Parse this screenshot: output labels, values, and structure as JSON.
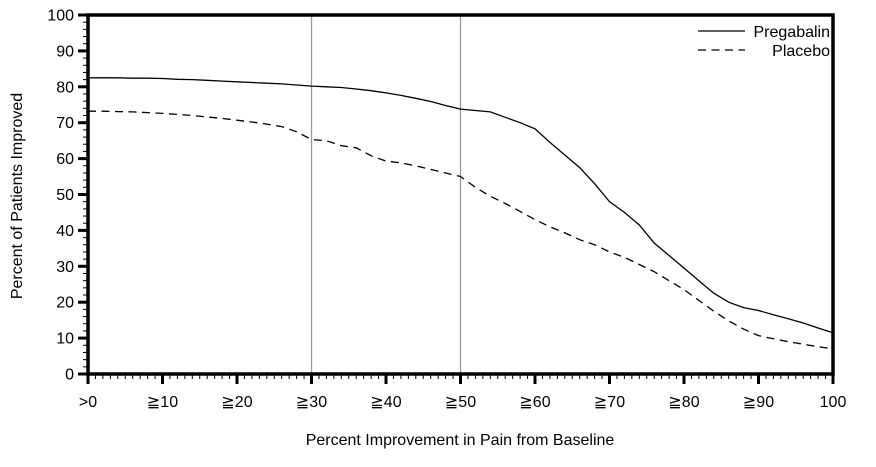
{
  "chart_data": {
    "type": "line",
    "title": "",
    "xlabel": "Percent Improvement in Pain from Baseline",
    "ylabel": "Percent of Patients Improved",
    "xlim": [
      0,
      100
    ],
    "ylim": [
      0,
      100
    ],
    "grid": "vertical-reference-lines-only",
    "gridlines_x": [
      30,
      50
    ],
    "grid_color": "#9a9a9a",
    "line_color": "#000000",
    "background_color": "#ffffff",
    "x_tick_values": [
      0,
      10,
      20,
      30,
      40,
      50,
      60,
      70,
      80,
      90,
      100
    ],
    "x_tick_labels": [
      ">0",
      "≧10",
      "≧20",
      "≧30",
      "≧40",
      "≧50",
      "≧60",
      "≧70",
      "≧80",
      "≧90",
      "100"
    ],
    "y_tick_values": [
      0,
      10,
      20,
      30,
      40,
      50,
      60,
      70,
      80,
      90,
      100
    ],
    "y_tick_labels": [
      "0",
      "10",
      "20",
      "30",
      "40",
      "50",
      "60",
      "70",
      "80",
      "90",
      "100"
    ],
    "x_minor_step": 1,
    "y_minor_step": 2,
    "legend": {
      "position": "top-right-inside"
    },
    "x": [
      0,
      2,
      4,
      6,
      8,
      10,
      12,
      14,
      16,
      18,
      20,
      22,
      24,
      26,
      28,
      30,
      32,
      34,
      36,
      38,
      40,
      42,
      44,
      46,
      48,
      50,
      52,
      54,
      56,
      58,
      60,
      62,
      64,
      66,
      68,
      70,
      72,
      74,
      76,
      78,
      80,
      82,
      84,
      86,
      88,
      90,
      92,
      94,
      96,
      98,
      100
    ],
    "series": [
      {
        "name": "Pregabalin",
        "style": "solid",
        "values": [
          82.5,
          82.5,
          82.5,
          82.4,
          82.4,
          82.3,
          82.1,
          82.0,
          81.8,
          81.6,
          81.4,
          81.2,
          81.0,
          80.8,
          80.5,
          80.2,
          80.0,
          79.8,
          79.4,
          78.9,
          78.3,
          77.6,
          76.8,
          75.9,
          74.8,
          73.8,
          73.4,
          73.0,
          71.5,
          70.0,
          68.3,
          64.5,
          61.0,
          57.5,
          53.0,
          48.0,
          45.0,
          41.5,
          36.5,
          33.0,
          29.5,
          26.0,
          22.5,
          20.0,
          18.5,
          17.7,
          16.5,
          15.4,
          14.2,
          12.8,
          11.5
        ]
      },
      {
        "name": "Placebo",
        "style": "dashed",
        "values": [
          73.2,
          73.2,
          73.1,
          73.0,
          72.8,
          72.6,
          72.3,
          72.0,
          71.6,
          71.2,
          70.7,
          70.2,
          69.6,
          68.9,
          67.5,
          65.3,
          65.0,
          63.6,
          63.0,
          60.8,
          59.3,
          58.8,
          58.0,
          57.0,
          56.0,
          55.0,
          52.0,
          49.5,
          47.5,
          45.3,
          43.0,
          41.0,
          39.3,
          37.4,
          36.0,
          34.0,
          32.5,
          30.5,
          28.5,
          26.0,
          23.5,
          20.5,
          17.5,
          14.8,
          12.5,
          10.7,
          9.8,
          9.0,
          8.3,
          7.6,
          7.0
        ]
      }
    ]
  }
}
